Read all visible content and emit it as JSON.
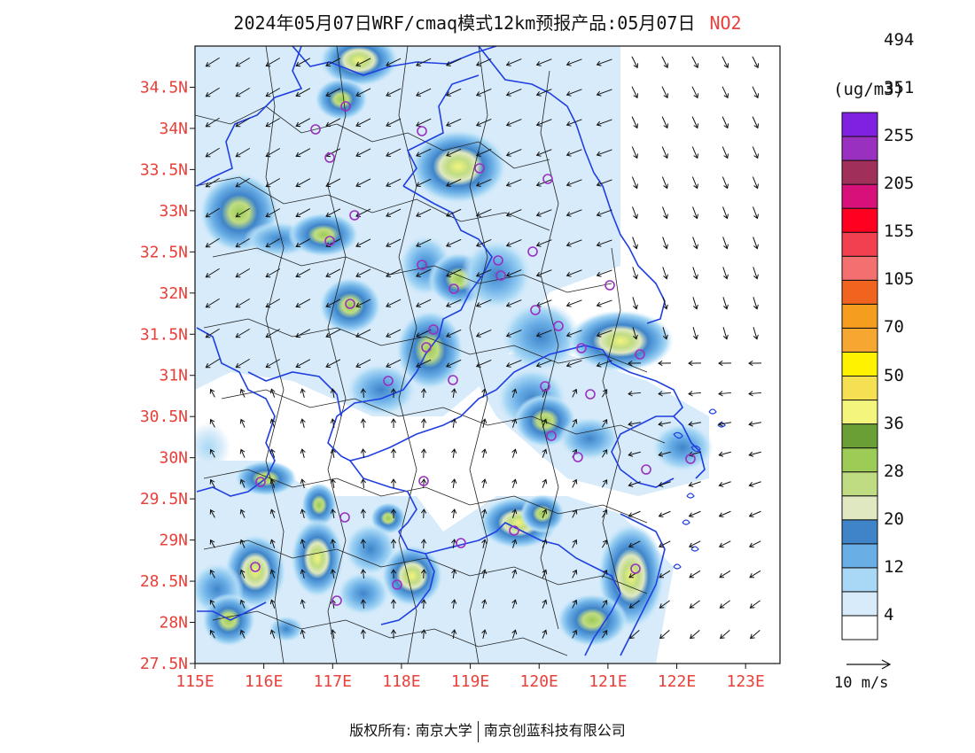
{
  "title": {
    "main": "2024年05月07日WRF/cmaq模式12km预报产品:05月07日",
    "pollutant": "NO2"
  },
  "map": {
    "lon_range": [
      115,
      123.5
    ],
    "lat_range": [
      27.5,
      35
    ],
    "lon_ticks": [
      "115E",
      "116E",
      "117E",
      "118E",
      "119E",
      "120E",
      "121E",
      "122E",
      "123E"
    ],
    "lon_values": [
      115,
      116,
      117,
      118,
      119,
      120,
      121,
      122,
      123
    ],
    "lat_ticks": [
      "27.5N",
      "28N",
      "28.5N",
      "29N",
      "29.5N",
      "30N",
      "30.5N",
      "31N",
      "31.5N",
      "32N",
      "32.5N",
      "33N",
      "33.5N",
      "34N",
      "34.5N"
    ],
    "lat_values": [
      27.5,
      28,
      28.5,
      29,
      29.5,
      30,
      30.5,
      31,
      31.5,
      32,
      32.5,
      33,
      33.5,
      34,
      34.5
    ],
    "tick_color": "#e8403a",
    "province_border_color": "#1f3fe0",
    "county_border_color": "#222222"
  },
  "colorbar": {
    "unit": "(ug/m3)",
    "colors": [
      "#ffffff",
      "#d7ebfa",
      "#a8d8f5",
      "#6aaee6",
      "#3f84c9",
      "#dfe8c0",
      "#c0dc82",
      "#9ccc55",
      "#6a9f35",
      "#f3f57d",
      "#f5df52",
      "#fff200",
      "#f6a732",
      "#f49d1f",
      "#f0641f",
      "#f47070",
      "#f24050",
      "#ff0020",
      "#d8107a",
      "#a0305a",
      "#9a30c0",
      "#8020e0"
    ],
    "labels": [
      "4",
      "12",
      "20",
      "28",
      "36",
      "50",
      "70",
      "105",
      "155",
      "205",
      "255",
      "351",
      "494"
    ]
  },
  "vector_ref": {
    "label": "10 m/s"
  },
  "footer": {
    "left": "版权所有: 南京大学",
    "right": "南京创蓝科技有限公司"
  }
}
